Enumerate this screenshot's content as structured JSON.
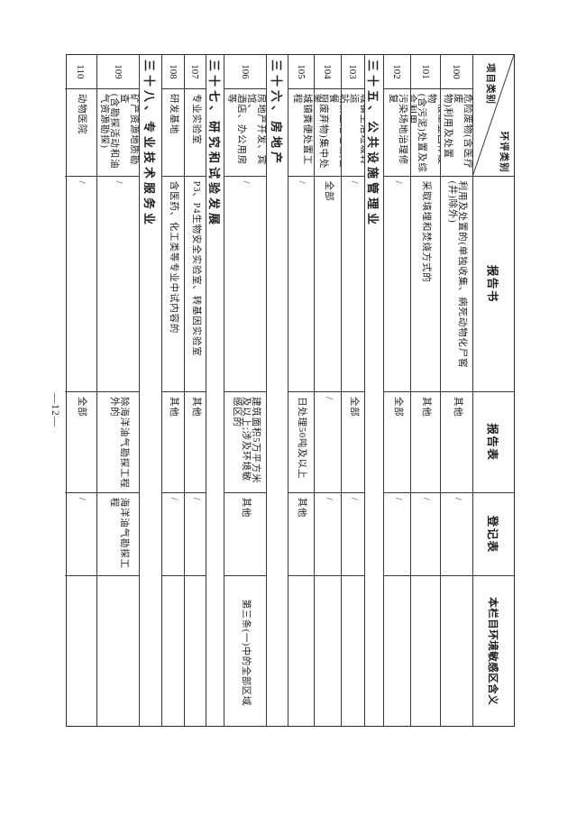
{
  "page": {
    "number_label": "—12—"
  },
  "table": {
    "header": {
      "diag_top": "环评类别",
      "diag_bottom": "项目类别",
      "col_report_book": "报告书",
      "col_report_form": "报告表",
      "col_registration_form": "登记表",
      "col_meaning": "本栏目环境敏感区含义"
    },
    "rows": [
      {
        "type": "item",
        "no": "100",
        "name": "危险废物(含医疗废\n物)利用及处置",
        "shu": "利用及处置的(单独收集、病死动物化尸窖\n(井)除外)",
        "biao": "其他",
        "deng": "/",
        "meaning": ""
      },
      {
        "type": "item",
        "no": "101",
        "name": "一般工业固体废物\n(含污泥)处置及综\n合利用",
        "shu": "采取填埋和焚烧方式的",
        "biao": "其他",
        "deng": "/",
        "meaning": ""
      },
      {
        "type": "item",
        "no": "102",
        "name": "污染场地治理修复",
        "shu": "/",
        "biao": "全部",
        "deng": "/",
        "meaning": ""
      },
      {
        "type": "group",
        "label": "三十五、公共设施管理业"
      },
      {
        "type": "item",
        "no": "103",
        "name": "城镇生活垃圾转运\n站",
        "shu": "/",
        "biao": "全部",
        "deng": "/",
        "meaning": ""
      },
      {
        "type": "item",
        "no": "104",
        "name": "城镇生活垃圾(含餐\n厨废弃物)集中处置",
        "shu": "全部",
        "biao": "/",
        "deng": "/",
        "meaning": ""
      },
      {
        "type": "item",
        "no": "105",
        "name": "城镇粪便处置工程",
        "shu": "/",
        "biao": "日处理50吨及以上",
        "deng": "其他",
        "meaning": ""
      },
      {
        "type": "group",
        "label": "三十六、房地产"
      },
      {
        "type": "item",
        "no": "106",
        "name": "房地产开发、宾馆、\n酒店、办公用房等",
        "shu": "/",
        "biao": "建筑面积5万平方米\n及以上;涉及环境敏\n感区的",
        "deng": "其他",
        "meaning": "第三条(一)中的全部区域"
      },
      {
        "type": "group",
        "label": "三十七、研究和试验发展"
      },
      {
        "type": "item",
        "no": "107",
        "name": "专业实验室",
        "shu": "P3、P4生物安全实验室、转基因实验室",
        "biao": "其他",
        "deng": "/",
        "meaning": ""
      },
      {
        "type": "item",
        "no": "108",
        "name": "研发基地",
        "shu": "含医药、化工类等专业中试内容的",
        "biao": "其他",
        "deng": "/",
        "meaning": ""
      },
      {
        "type": "group",
        "label": "三十八、专业技术服务业"
      },
      {
        "type": "item",
        "no": "109",
        "name": "矿产资源地质勘查\n(含勘探活动和油\n气资源勘探)",
        "shu": "/",
        "biao": "除海洋油气勘探工程\n外的",
        "deng": "海洋油气勘探工\n程",
        "meaning": ""
      },
      {
        "type": "item",
        "no": "110",
        "name": "动物医院",
        "shu": "/",
        "biao": "全部",
        "deng": "/",
        "meaning": ""
      }
    ]
  }
}
